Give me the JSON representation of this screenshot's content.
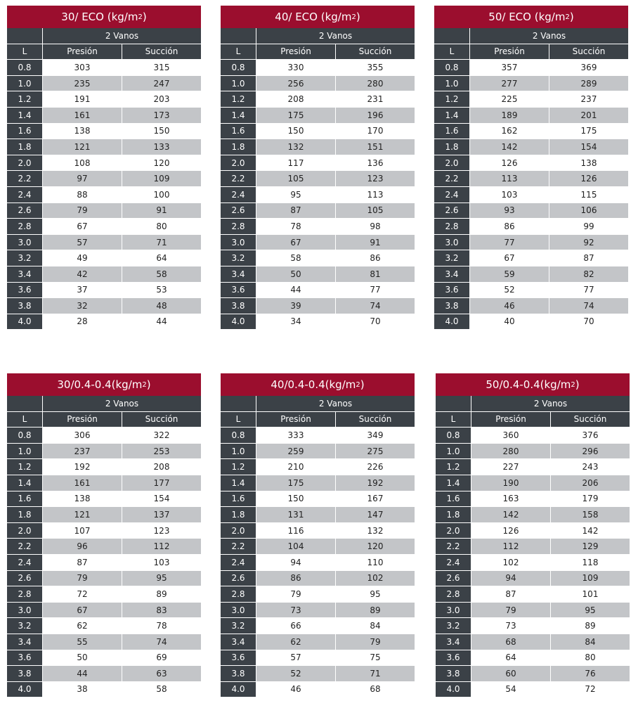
{
  "tables": [
    {
      "title_main": "30/ ECO (kg/m",
      "title_sup": "2",
      "title_end": ")",
      "span_label": "2 Vanos",
      "col_l": "L",
      "col_p": "Presión",
      "col_s": "Succión",
      "rows": [
        [
          "0.8",
          "303",
          "315"
        ],
        [
          "1.0",
          "235",
          "247"
        ],
        [
          "1.2",
          "191",
          "203"
        ],
        [
          "1.4",
          "161",
          "173"
        ],
        [
          "1.6",
          "138",
          "150"
        ],
        [
          "1.8",
          "121",
          "133"
        ],
        [
          "2.0",
          "108",
          "120"
        ],
        [
          "2.2",
          "97",
          "109"
        ],
        [
          "2.4",
          "88",
          "100"
        ],
        [
          "2.6",
          "79",
          "91"
        ],
        [
          "2.8",
          "67",
          "80"
        ],
        [
          "3.0",
          "57",
          "71"
        ],
        [
          "3.2",
          "49",
          "64"
        ],
        [
          "3.4",
          "42",
          "58"
        ],
        [
          "3.6",
          "37",
          "53"
        ],
        [
          "3.8",
          "32",
          "48"
        ],
        [
          "4.0",
          "28",
          "44"
        ]
      ]
    },
    {
      "title_main": "40/ ECO (kg/m",
      "title_sup": "2",
      "title_end": ")",
      "span_label": "2 Vanos",
      "col_l": "L",
      "col_p": "Presión",
      "col_s": "Succión",
      "rows": [
        [
          "0.8",
          "330",
          "355"
        ],
        [
          "1.0",
          "256",
          "280"
        ],
        [
          "1.2",
          "208",
          "231"
        ],
        [
          "1.4",
          "175",
          "196"
        ],
        [
          "1.6",
          "150",
          "170"
        ],
        [
          "1.8",
          "132",
          "151"
        ],
        [
          "2.0",
          "117",
          "136"
        ],
        [
          "2.2",
          "105",
          "123"
        ],
        [
          "2.4",
          "95",
          "113"
        ],
        [
          "2.6",
          "87",
          "105"
        ],
        [
          "2.8",
          "78",
          "98"
        ],
        [
          "3.0",
          "67",
          "91"
        ],
        [
          "3.2",
          "58",
          "86"
        ],
        [
          "3.4",
          "50",
          "81"
        ],
        [
          "3.6",
          "44",
          "77"
        ],
        [
          "3.8",
          "39",
          "74"
        ],
        [
          "4.0",
          "34",
          "70"
        ]
      ]
    },
    {
      "title_main": "50/ ECO (kg/m",
      "title_sup": "2",
      "title_end": ")",
      "span_label": "2 Vanos",
      "col_l": "L",
      "col_p": "Presión",
      "col_s": "Succión",
      "rows": [
        [
          "0.8",
          "357",
          "369"
        ],
        [
          "1.0",
          "277",
          "289"
        ],
        [
          "1.2",
          "225",
          "237"
        ],
        [
          "1.4",
          "189",
          "201"
        ],
        [
          "1.6",
          "162",
          "175"
        ],
        [
          "1.8",
          "142",
          "154"
        ],
        [
          "2.0",
          "126",
          "138"
        ],
        [
          "2.2",
          "113",
          "126"
        ],
        [
          "2.4",
          "103",
          "115"
        ],
        [
          "2.6",
          "93",
          "106"
        ],
        [
          "2.8",
          "86",
          "99"
        ],
        [
          "3.0",
          "77",
          "92"
        ],
        [
          "3.2",
          "67",
          "87"
        ],
        [
          "3.4",
          "59",
          "82"
        ],
        [
          "3.6",
          "52",
          "77"
        ],
        [
          "3.8",
          "46",
          "74"
        ],
        [
          "4.0",
          "40",
          "70"
        ]
      ]
    },
    {
      "title_main": "30/0.4-0.4(kg/m",
      "title_sup": "2",
      "title_end": ")",
      "span_label": "2 Vanos",
      "col_l": "L",
      "col_p": "Presión",
      "col_s": "Succión",
      "rows": [
        [
          "0.8",
          "306",
          "322"
        ],
        [
          "1.0",
          "237",
          "253"
        ],
        [
          "1.2",
          "192",
          "208"
        ],
        [
          "1.4",
          "161",
          "177"
        ],
        [
          "1.6",
          "138",
          "154"
        ],
        [
          "1.8",
          "121",
          "137"
        ],
        [
          "2.0",
          "107",
          "123"
        ],
        [
          "2.2",
          "96",
          "112"
        ],
        [
          "2.4",
          "87",
          "103"
        ],
        [
          "2.6",
          "79",
          "95"
        ],
        [
          "2.8",
          "72",
          "89"
        ],
        [
          "3.0",
          "67",
          "83"
        ],
        [
          "3.2",
          "62",
          "78"
        ],
        [
          "3.4",
          "55",
          "74"
        ],
        [
          "3.6",
          "50",
          "69"
        ],
        [
          "3.8",
          "44",
          "63"
        ],
        [
          "4.0",
          "38",
          "58"
        ]
      ]
    },
    {
      "title_main": "40/0.4-0.4(kg/m",
      "title_sup": "2",
      "title_end": ")",
      "span_label": "2 Vanos",
      "col_l": "L",
      "col_p": "Presión",
      "col_s": "Succión",
      "rows": [
        [
          "0.8",
          "333",
          "349"
        ],
        [
          "1.0",
          "259",
          "275"
        ],
        [
          "1.2",
          "210",
          "226"
        ],
        [
          "1.4",
          "175",
          "192"
        ],
        [
          "1.6",
          "150",
          "167"
        ],
        [
          "1.8",
          "131",
          "147"
        ],
        [
          "2.0",
          "116",
          "132"
        ],
        [
          "2.2",
          "104",
          "120"
        ],
        [
          "2.4",
          "94",
          "110"
        ],
        [
          "2.6",
          "86",
          "102"
        ],
        [
          "2.8",
          "79",
          "95"
        ],
        [
          "3.0",
          "73",
          "89"
        ],
        [
          "3.2",
          "66",
          "84"
        ],
        [
          "3.4",
          "62",
          "79"
        ],
        [
          "3.6",
          "57",
          "75"
        ],
        [
          "3.8",
          "52",
          "71"
        ],
        [
          "4.0",
          "46",
          "68"
        ]
      ]
    },
    {
      "title_main": "50/0.4-0.4(kg/m",
      "title_sup": "2",
      "title_end": ")",
      "span_label": "2 Vanos",
      "col_l": "L",
      "col_p": "Presión",
      "col_s": "Succión",
      "rows": [
        [
          "0.8",
          "360",
          "376"
        ],
        [
          "1.0",
          "280",
          "296"
        ],
        [
          "1.2",
          "227",
          "243"
        ],
        [
          "1.4",
          "190",
          "206"
        ],
        [
          "1.6",
          "163",
          "179"
        ],
        [
          "1.8",
          "142",
          "158"
        ],
        [
          "2.0",
          "126",
          "142"
        ],
        [
          "2.2",
          "112",
          "129"
        ],
        [
          "2.4",
          "102",
          "118"
        ],
        [
          "2.6",
          "94",
          "109"
        ],
        [
          "2.8",
          "87",
          "101"
        ],
        [
          "3.0",
          "79",
          "95"
        ],
        [
          "3.2",
          "73",
          "89"
        ],
        [
          "3.4",
          "68",
          "84"
        ],
        [
          "3.6",
          "64",
          "80"
        ],
        [
          "3.8",
          "60",
          "76"
        ],
        [
          "4.0",
          "54",
          "72"
        ]
      ]
    }
  ],
  "colors": {
    "title_bg": "#9b0e2e",
    "header_bg": "#3b4147",
    "alt_row": "#c3c5c8"
  }
}
